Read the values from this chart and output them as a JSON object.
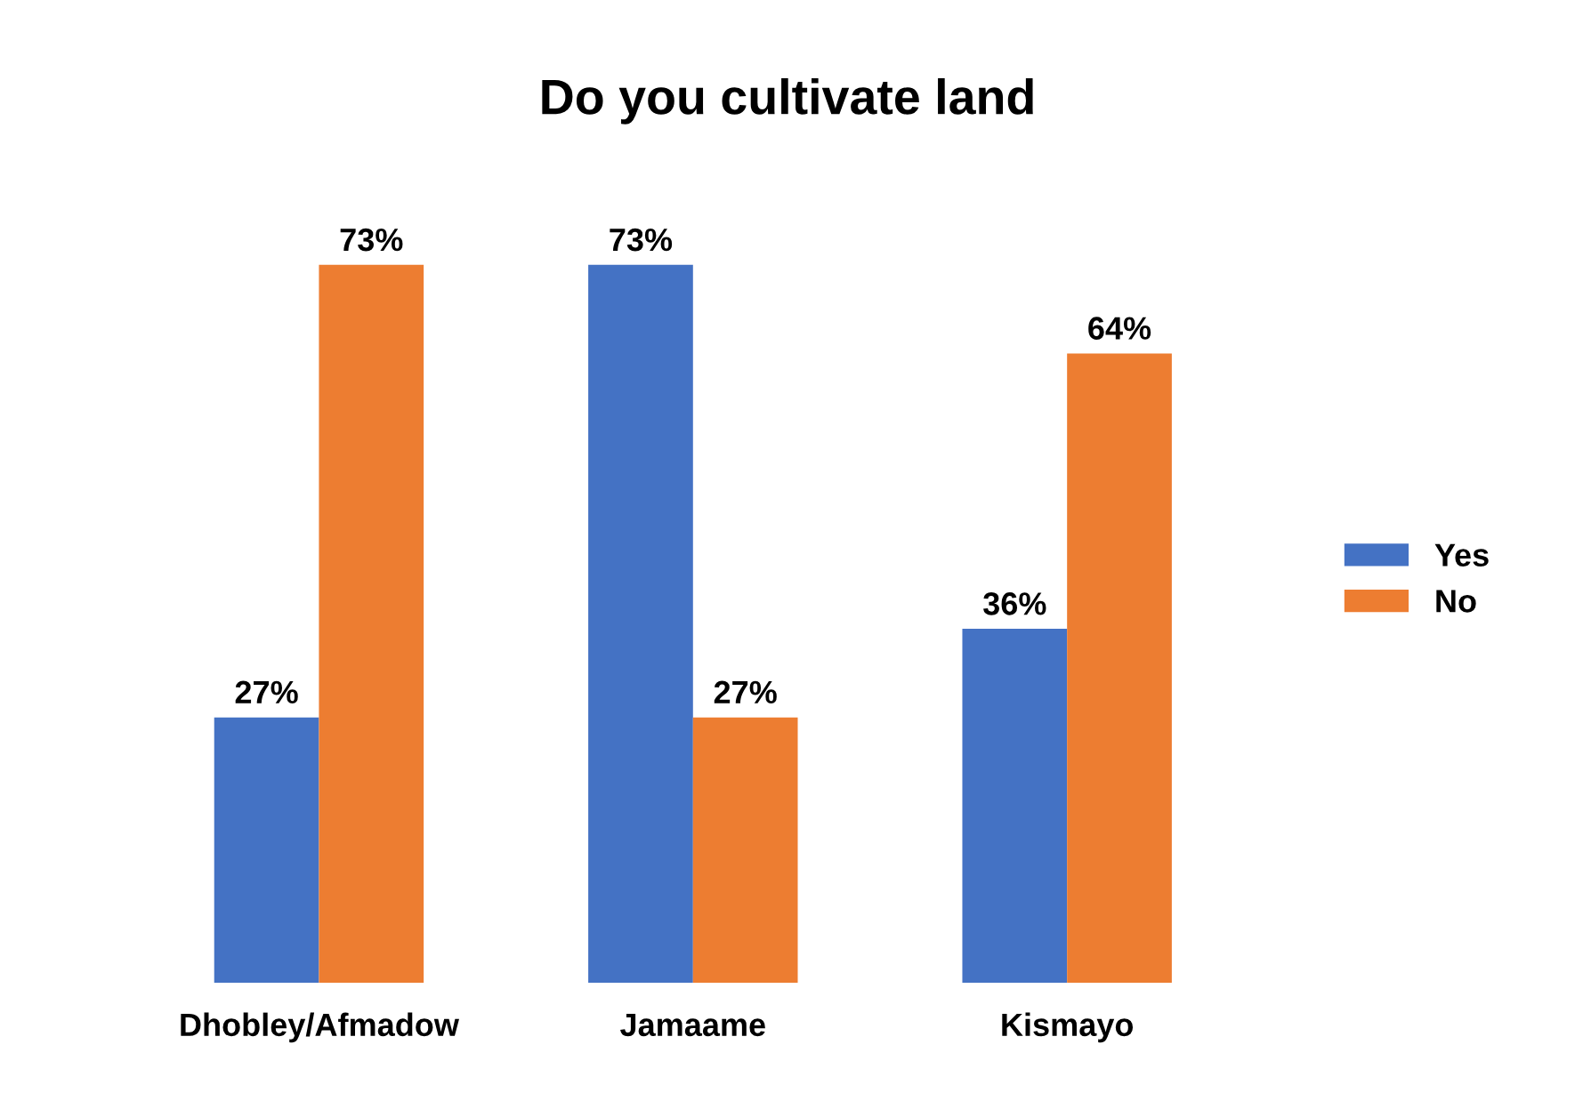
{
  "chart_data": {
    "type": "bar",
    "title": "Do you cultivate land",
    "categories": [
      "Dhobley/Afmadow",
      "Jamaame",
      "Kismayo"
    ],
    "series": [
      {
        "name": "Yes",
        "color": "#4472c4",
        "values": [
          27,
          73,
          36
        ],
        "value_labels": [
          "27%",
          "73%",
          "36%"
        ]
      },
      {
        "name": "No",
        "color": "#ed7d31",
        "values": [
          73,
          27,
          64
        ],
        "value_labels": [
          "73%",
          "27%",
          "64%"
        ]
      }
    ],
    "legend": "right",
    "grid": false
  }
}
